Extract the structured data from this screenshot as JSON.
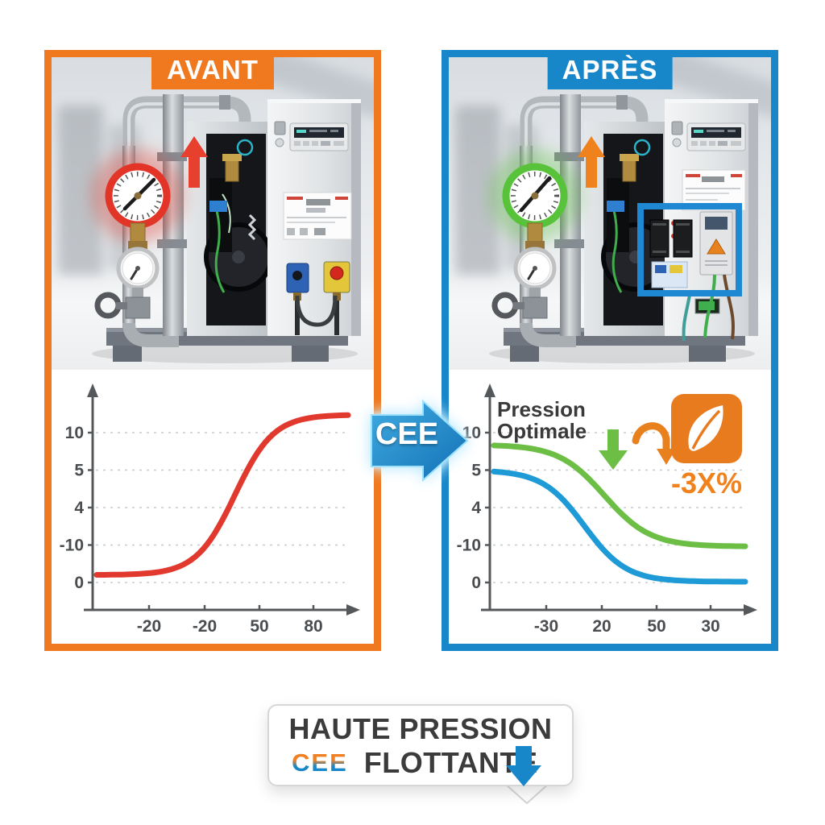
{
  "panels": {
    "before": {
      "label": "AVANT",
      "accent_color": "#F0791F",
      "gauge_color": "#E23427",
      "arrow_color": "#E8402F"
    },
    "after": {
      "label": "APRÈS",
      "accent_color": "#1787C9",
      "gauge_color": "#59C23B",
      "arrow_color": "#F0821E",
      "highlight_box_color": "#1E88D2"
    }
  },
  "cee_arrow": {
    "label": "CEE",
    "color": "#1787C9"
  },
  "chart_data": [
    {
      "type": "line",
      "panel": "avant",
      "x_ticks": [
        "-20",
        "-20",
        "50",
        "80"
      ],
      "y_ticks": [
        "10",
        "5",
        "4",
        "-10",
        "0"
      ],
      "grid": "dashed-horizontal",
      "axes": "arrow-ended, unlabeled",
      "series": [
        {
          "name": "haute-pression-constante",
          "color": "#E2392F",
          "shape": "sigmoid",
          "v_start": 0.05,
          "v_end": 1.12,
          "t_center": 0.55,
          "steepness": 13
        }
      ]
    },
    {
      "type": "line",
      "panel": "apres",
      "annotation": [
        "Pression",
        "Optimale"
      ],
      "badge_label": "-3X%",
      "x_ticks": [
        "-30",
        "20",
        "50",
        "30"
      ],
      "y_ticks": [
        "10",
        "5",
        "4",
        "-10",
        "0"
      ],
      "grid": "dashed-horizontal",
      "axes": "arrow-ended, unlabeled",
      "series": [
        {
          "name": "pression-optimale-verte",
          "color": "#6CBE45",
          "shape": "sigmoid",
          "v_start": 0.92,
          "v_end": 0.24,
          "t_center": 0.44,
          "steepness": 11
        },
        {
          "name": "pression-flottante-bleue",
          "color": "#1E9AD6",
          "shape": "sigmoid",
          "v_start": 0.75,
          "v_end": 0.005,
          "t_center": 0.36,
          "steepness": 12
        }
      ]
    }
  ],
  "banner": {
    "line1": "HAUTE PRESSION",
    "logo": "CEE",
    "line2": "FLOTTANTE"
  }
}
